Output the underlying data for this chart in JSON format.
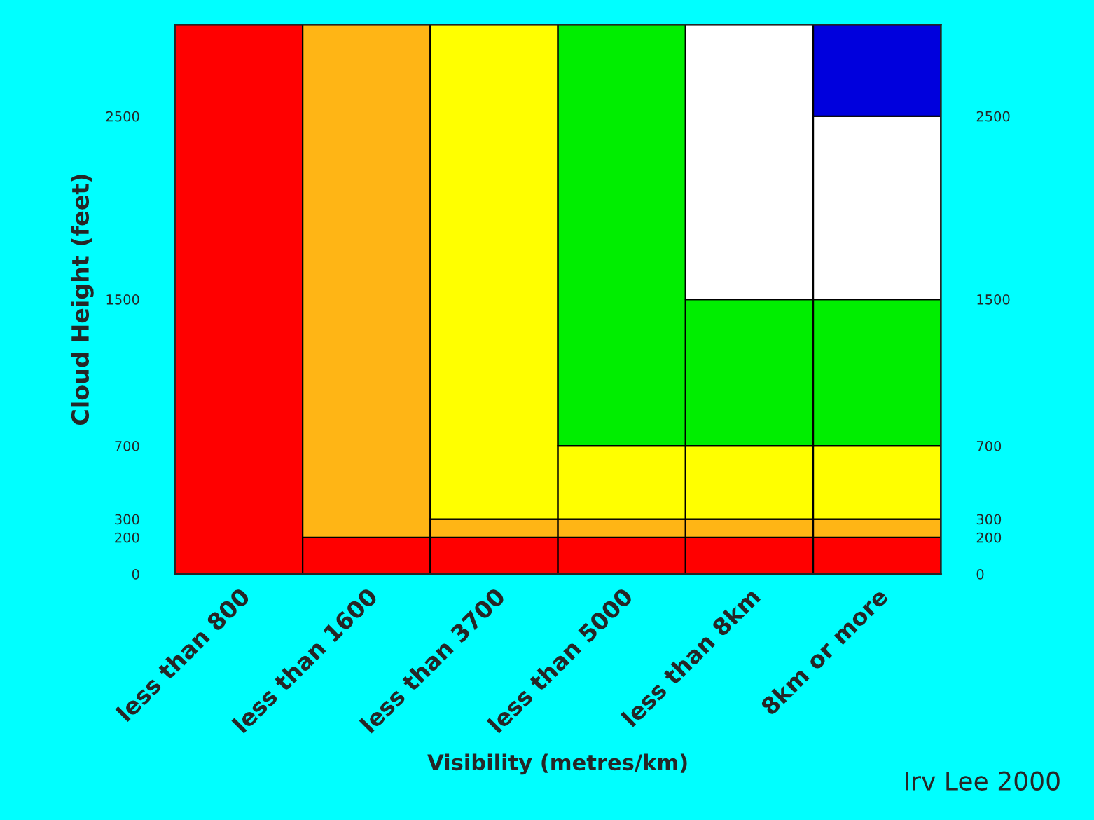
{
  "chart_data": {
    "type": "bar",
    "stacked": true,
    "xlabel": "Visibility (metres/km)",
    "ylabel": "Cloud Height (feet)",
    "categories": [
      "less than 800",
      "less than 1600",
      "less than 3700",
      "less than 5000",
      "less than 8km",
      "8km or more"
    ],
    "series": [
      {
        "color": "#ff0000",
        "values": [
          3000,
          200,
          200,
          200,
          200,
          200
        ]
      },
      {
        "color": "#ffb515",
        "values": [
          null,
          2800,
          100,
          100,
          100,
          100
        ]
      },
      {
        "color": "#ffff00",
        "values": [
          null,
          null,
          2700,
          400,
          400,
          400
        ]
      },
      {
        "color": "#00ee00",
        "values": [
          null,
          null,
          null,
          2300,
          800,
          800
        ]
      },
      {
        "color": "#ffffff",
        "values": [
          null,
          null,
          null,
          null,
          1500,
          1000
        ]
      },
      {
        "color": "#0000dd",
        "values": [
          null,
          null,
          null,
          null,
          null,
          500
        ]
      }
    ],
    "ylim": [
      0,
      3000
    ],
    "yticks": [
      0,
      200,
      300,
      700,
      1500,
      2500
    ],
    "y2lim": [
      0,
      3000
    ],
    "y2ticks": [
      0,
      200,
      300,
      700,
      1500,
      2500
    ],
    "legend": false,
    "annotations": [
      "Irv Lee 2000"
    ]
  }
}
